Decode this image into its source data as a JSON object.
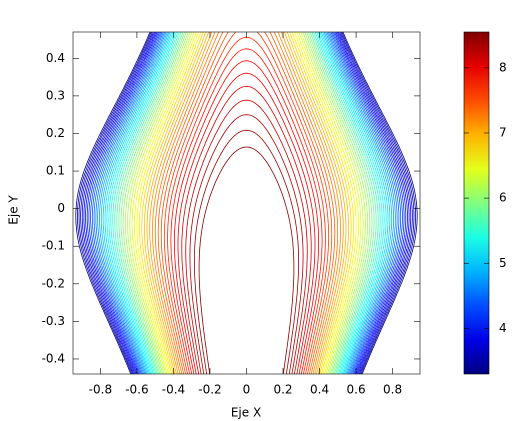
{
  "chart_data": {
    "type": "contour",
    "xlabel": "Eje X",
    "ylabel": "Eje Y",
    "xlim": [
      -0.95,
      0.95
    ],
    "ylim": [
      -0.44,
      0.47
    ],
    "xticks": [
      -0.8,
      -0.6,
      -0.4,
      -0.2,
      0,
      0.2,
      0.4,
      0.6,
      0.8
    ],
    "yticks": [
      -0.4,
      -0.3,
      -0.2,
      -0.1,
      0,
      0.1,
      0.2,
      0.3,
      0.4
    ],
    "levels": [
      3.4,
      3.5,
      3.6,
      3.7,
      3.8,
      3.9,
      4.0,
      4.1,
      4.2,
      4.3,
      4.4,
      4.5,
      4.6,
      4.7,
      4.8,
      4.9,
      5.0,
      5.1,
      5.2,
      5.3,
      5.4,
      5.5,
      5.6,
      5.7,
      5.8,
      5.9,
      6.0,
      6.1,
      6.2,
      6.3,
      6.4,
      6.5,
      6.6,
      6.7,
      6.8,
      6.9,
      7.0,
      7.1,
      7.2,
      7.3,
      7.4,
      7.5,
      7.6,
      7.7,
      7.8,
      7.9,
      8.0,
      8.1,
      8.2,
      8.3,
      8.4,
      8.5
    ],
    "zlim": [
      3.3,
      8.55
    ],
    "zticks": [
      4,
      5,
      6,
      7,
      8
    ],
    "colormap": "jet"
  }
}
